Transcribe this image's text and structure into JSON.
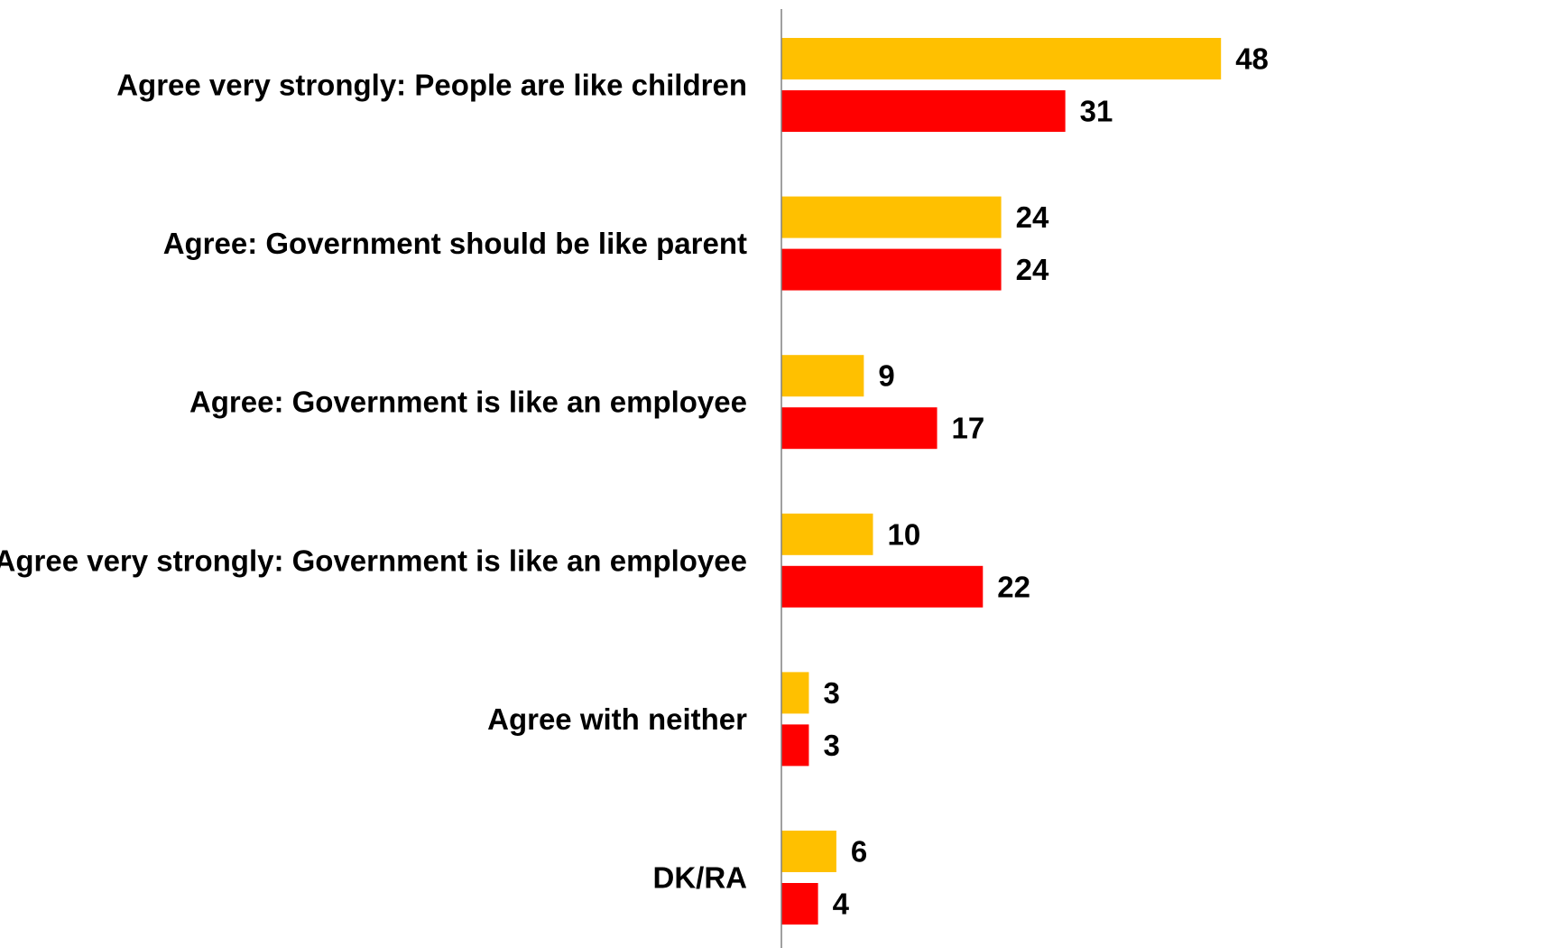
{
  "chart_data": {
    "type": "bar",
    "orientation": "horizontal",
    "categories": [
      "Agree very strongly: People are like children",
      "Agree: Government should be like parent",
      "Agree: Government is like an employee",
      "Agree very strongly: Government is like an employee",
      "Agree with neither",
      "DK/RA"
    ],
    "series": [
      {
        "color": "#FFC000",
        "values": [
          48,
          24,
          9,
          10,
          3,
          6
        ]
      },
      {
        "color": "#FF0000",
        "values": [
          31,
          24,
          17,
          22,
          3,
          4
        ]
      }
    ],
    "xlim": [
      0,
      50
    ],
    "grid": false,
    "legend": "none",
    "axis_color": "#808080"
  }
}
